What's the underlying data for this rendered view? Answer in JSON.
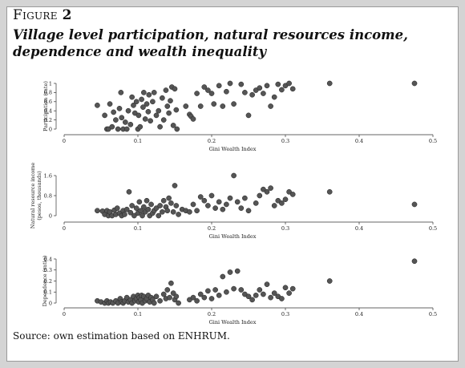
{
  "figure": {
    "label_prefix": "Figure",
    "label_number": "2",
    "title_line1": "Village level participation, natural resources income,",
    "title_line2": "dependence and wealth inequality",
    "source_prefix": "Source: own estimation based on",
    "source_name": "ENHRUM."
  },
  "colors": {
    "marker": "#555555",
    "marker_edge": "#222222",
    "axis": "#333333"
  },
  "chart_data": [
    {
      "type": "scatter",
      "xlabel": "Gini Wealth Index",
      "ylabel": "Participation (rate)",
      "ylabel_lines": [
        "Participation (rate)"
      ],
      "xlim": [
        0,
        0.5
      ],
      "ylim": [
        0,
        1
      ],
      "xticks": [
        0,
        0.1,
        0.2,
        0.3,
        0.4,
        0.5
      ],
      "xtick_labels": [
        "0",
        "0.1",
        "0.2",
        "0.3",
        "0.4",
        "0.5"
      ],
      "yticks": [
        0,
        0.2,
        0.4,
        0.6,
        0.8,
        1
      ],
      "ytick_labels": [
        "0",
        "0.2",
        "0.4",
        "0.6",
        "0.8",
        "1"
      ],
      "grid": false,
      "points": [
        [
          0.045,
          0.52
        ],
        [
          0.055,
          0.3
        ],
        [
          0.058,
          0.0
        ],
        [
          0.06,
          0.0
        ],
        [
          0.062,
          0.55
        ],
        [
          0.065,
          0.05
        ],
        [
          0.067,
          0.37
        ],
        [
          0.07,
          0.2
        ],
        [
          0.073,
          0.0
        ],
        [
          0.075,
          0.45
        ],
        [
          0.077,
          0.8
        ],
        [
          0.078,
          0.25
        ],
        [
          0.08,
          0.0
        ],
        [
          0.083,
          0.15
        ],
        [
          0.085,
          0.0
        ],
        [
          0.087,
          0.4
        ],
        [
          0.09,
          0.1
        ],
        [
          0.092,
          0.7
        ],
        [
          0.094,
          0.52
        ],
        [
          0.096,
          0.35
        ],
        [
          0.098,
          0.6
        ],
        [
          0.1,
          0.0
        ],
        [
          0.101,
          0.3
        ],
        [
          0.103,
          0.05
        ],
        [
          0.105,
          0.65
        ],
        [
          0.107,
          0.48
        ],
        [
          0.108,
          0.8
        ],
        [
          0.11,
          0.22
        ],
        [
          0.112,
          0.55
        ],
        [
          0.114,
          0.38
        ],
        [
          0.115,
          0.75
        ],
        [
          0.117,
          0.18
        ],
        [
          0.12,
          0.6
        ],
        [
          0.122,
          0.8
        ],
        [
          0.125,
          0.3
        ],
        [
          0.128,
          0.4
        ],
        [
          0.13,
          0.05
        ],
        [
          0.133,
          0.68
        ],
        [
          0.135,
          0.2
        ],
        [
          0.138,
          0.85
        ],
        [
          0.14,
          0.5
        ],
        [
          0.142,
          0.35
        ],
        [
          0.144,
          0.62
        ],
        [
          0.146,
          0.92
        ],
        [
          0.148,
          0.08
        ],
        [
          0.15,
          0.88
        ],
        [
          0.152,
          0.42
        ],
        [
          0.153,
          0.0
        ],
        [
          0.165,
          0.5
        ],
        [
          0.17,
          0.32
        ],
        [
          0.172,
          0.28
        ],
        [
          0.175,
          0.22
        ],
        [
          0.18,
          0.78
        ],
        [
          0.185,
          0.5
        ],
        [
          0.19,
          0.92
        ],
        [
          0.195,
          0.85
        ],
        [
          0.2,
          0.78
        ],
        [
          0.203,
          0.55
        ],
        [
          0.21,
          0.95
        ],
        [
          0.215,
          0.5
        ],
        [
          0.22,
          0.82
        ],
        [
          0.225,
          1.0
        ],
        [
          0.23,
          0.55
        ],
        [
          0.24,
          0.98
        ],
        [
          0.245,
          0.8
        ],
        [
          0.25,
          0.3
        ],
        [
          0.255,
          0.75
        ],
        [
          0.26,
          0.85
        ],
        [
          0.265,
          0.9
        ],
        [
          0.27,
          0.78
        ],
        [
          0.275,
          0.95
        ],
        [
          0.28,
          0.5
        ],
        [
          0.285,
          0.7
        ],
        [
          0.29,
          0.98
        ],
        [
          0.295,
          0.86
        ],
        [
          0.3,
          0.95
        ],
        [
          0.305,
          1.0
        ],
        [
          0.31,
          0.88
        ],
        [
          0.36,
          1.0
        ],
        [
          0.475,
          1.0
        ]
      ]
    },
    {
      "type": "scatter",
      "xlabel": "Gini Wealth Index",
      "ylabel": "Natural resource income (pesos, thousands)",
      "ylabel_lines": [
        "Natural resource income",
        "(pesos, thousands)"
      ],
      "xlim": [
        0,
        0.5
      ],
      "ylim": [
        0,
        1.6
      ],
      "xticks": [
        0,
        0.1,
        0.2,
        0.3,
        0.4,
        0.5
      ],
      "xtick_labels": [
        "0",
        "0.1",
        "0.2",
        "0.3",
        "0.4",
        "0.5"
      ],
      "yticks": [
        0,
        0.8,
        1.6
      ],
      "ytick_labels": [
        "0",
        "0.8",
        "1.6"
      ],
      "grid": false,
      "points": [
        [
          0.045,
          0.2
        ],
        [
          0.052,
          0.18
        ],
        [
          0.055,
          0.05
        ],
        [
          0.058,
          0.2
        ],
        [
          0.06,
          0.0
        ],
        [
          0.062,
          0.15
        ],
        [
          0.065,
          0.0
        ],
        [
          0.068,
          0.22
        ],
        [
          0.07,
          0.05
        ],
        [
          0.072,
          0.3
        ],
        [
          0.075,
          0.1
        ],
        [
          0.078,
          0.0
        ],
        [
          0.08,
          0.2
        ],
        [
          0.082,
          0.05
        ],
        [
          0.085,
          0.25
        ],
        [
          0.088,
          0.95
        ],
        [
          0.09,
          0.12
        ],
        [
          0.092,
          0.4
        ],
        [
          0.095,
          0.0
        ],
        [
          0.098,
          0.3
        ],
        [
          0.1,
          0.1
        ],
        [
          0.102,
          0.55
        ],
        [
          0.104,
          0.2
        ],
        [
          0.106,
          0.0
        ],
        [
          0.108,
          0.35
        ],
        [
          0.11,
          0.15
        ],
        [
          0.112,
          0.6
        ],
        [
          0.114,
          0.25
        ],
        [
          0.116,
          0.0
        ],
        [
          0.118,
          0.45
        ],
        [
          0.12,
          0.1
        ],
        [
          0.122,
          0.2
        ],
        [
          0.125,
          0.3
        ],
        [
          0.128,
          0.0
        ],
        [
          0.13,
          0.4
        ],
        [
          0.133,
          0.15
        ],
        [
          0.135,
          0.6
        ],
        [
          0.138,
          0.35
        ],
        [
          0.14,
          0.2
        ],
        [
          0.142,
          0.7
        ],
        [
          0.145,
          0.5
        ],
        [
          0.148,
          0.15
        ],
        [
          0.15,
          1.2
        ],
        [
          0.152,
          0.4
        ],
        [
          0.155,
          0.05
        ],
        [
          0.16,
          0.25
        ],
        [
          0.165,
          0.2
        ],
        [
          0.17,
          0.15
        ],
        [
          0.175,
          0.45
        ],
        [
          0.18,
          0.2
        ],
        [
          0.185,
          0.75
        ],
        [
          0.19,
          0.6
        ],
        [
          0.195,
          0.4
        ],
        [
          0.2,
          0.8
        ],
        [
          0.205,
          0.3
        ],
        [
          0.21,
          0.55
        ],
        [
          0.215,
          0.25
        ],
        [
          0.22,
          0.45
        ],
        [
          0.225,
          0.7
        ],
        [
          0.23,
          1.6
        ],
        [
          0.235,
          0.55
        ],
        [
          0.24,
          0.3
        ],
        [
          0.245,
          0.7
        ],
        [
          0.25,
          0.2
        ],
        [
          0.26,
          0.5
        ],
        [
          0.265,
          0.8
        ],
        [
          0.27,
          1.05
        ],
        [
          0.275,
          0.95
        ],
        [
          0.28,
          1.1
        ],
        [
          0.285,
          0.4
        ],
        [
          0.29,
          0.6
        ],
        [
          0.295,
          0.5
        ],
        [
          0.3,
          0.65
        ],
        [
          0.305,
          0.95
        ],
        [
          0.31,
          0.85
        ],
        [
          0.36,
          0.95
        ],
        [
          0.475,
          0.45
        ]
      ]
    },
    {
      "type": "scatter",
      "xlabel": "Gini Wealth Index",
      "ylabel": "Dependence (ratio)",
      "ylabel_lines": [
        "Dependence (ratio)"
      ],
      "xlim": [
        0,
        0.5
      ],
      "ylim": [
        0,
        0.4
      ],
      "xticks": [
        0,
        0.1,
        0.2,
        0.3,
        0.4,
        0.5
      ],
      "xtick_labels": [
        "0",
        "0.1",
        "0.2",
        "0.3",
        "0.4",
        "0.5"
      ],
      "yticks": [
        0,
        0.1,
        0.2,
        0.3,
        0.4
      ],
      "ytick_labels": [
        "0",
        "0.1",
        "0.2",
        "0.3",
        "0.4"
      ],
      "grid": false,
      "points": [
        [
          0.045,
          0.02
        ],
        [
          0.05,
          0.01
        ],
        [
          0.055,
          0.0
        ],
        [
          0.058,
          0.02
        ],
        [
          0.06,
          0.0
        ],
        [
          0.063,
          0.01
        ],
        [
          0.066,
          0.0
        ],
        [
          0.07,
          0.02
        ],
        [
          0.073,
          0.0
        ],
        [
          0.076,
          0.04
        ],
        [
          0.078,
          0.01
        ],
        [
          0.08,
          0.0
        ],
        [
          0.082,
          0.02
        ],
        [
          0.085,
          0.05
        ],
        [
          0.087,
          0.01
        ],
        [
          0.09,
          0.03
        ],
        [
          0.092,
          0.0
        ],
        [
          0.094,
          0.06
        ],
        [
          0.096,
          0.02
        ],
        [
          0.098,
          0.04
        ],
        [
          0.1,
          0.07
        ],
        [
          0.101,
          0.01
        ],
        [
          0.102,
          0.05
        ],
        [
          0.104,
          0.03
        ],
        [
          0.105,
          0.07
        ],
        [
          0.106,
          0.0
        ],
        [
          0.108,
          0.06
        ],
        [
          0.11,
          0.02
        ],
        [
          0.112,
          0.04
        ],
        [
          0.114,
          0.07
        ],
        [
          0.116,
          0.01
        ],
        [
          0.118,
          0.05
        ],
        [
          0.12,
          0.03
        ],
        [
          0.122,
          0.0
        ],
        [
          0.125,
          0.06
        ],
        [
          0.13,
          0.02
        ],
        [
          0.135,
          0.08
        ],
        [
          0.138,
          0.04
        ],
        [
          0.14,
          0.12
        ],
        [
          0.143,
          0.05
        ],
        [
          0.145,
          0.18
        ],
        [
          0.148,
          0.09
        ],
        [
          0.15,
          0.03
        ],
        [
          0.152,
          0.06
        ],
        [
          0.155,
          0.0
        ],
        [
          0.17,
          0.03
        ],
        [
          0.175,
          0.05
        ],
        [
          0.18,
          0.02
        ],
        [
          0.185,
          0.08
        ],
        [
          0.19,
          0.05
        ],
        [
          0.195,
          0.11
        ],
        [
          0.2,
          0.04
        ],
        [
          0.205,
          0.12
        ],
        [
          0.21,
          0.07
        ],
        [
          0.215,
          0.24
        ],
        [
          0.22,
          0.1
        ],
        [
          0.225,
          0.28
        ],
        [
          0.23,
          0.13
        ],
        [
          0.235,
          0.29
        ],
        [
          0.24,
          0.12
        ],
        [
          0.245,
          0.08
        ],
        [
          0.25,
          0.06
        ],
        [
          0.255,
          0.03
        ],
        [
          0.26,
          0.07
        ],
        [
          0.265,
          0.12
        ],
        [
          0.27,
          0.08
        ],
        [
          0.275,
          0.17
        ],
        [
          0.28,
          0.05
        ],
        [
          0.285,
          0.09
        ],
        [
          0.29,
          0.06
        ],
        [
          0.295,
          0.04
        ],
        [
          0.3,
          0.14
        ],
        [
          0.305,
          0.09
        ],
        [
          0.31,
          0.13
        ],
        [
          0.36,
          0.2
        ],
        [
          0.475,
          0.38
        ]
      ]
    }
  ]
}
